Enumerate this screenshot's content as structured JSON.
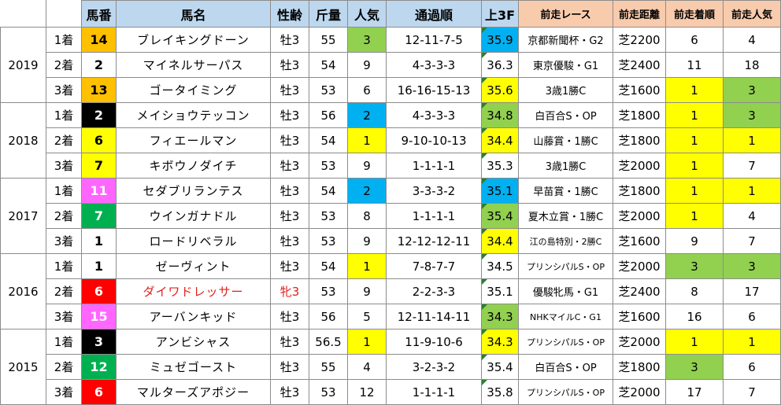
{
  "headers": [
    "",
    "",
    "馬番",
    "馬名",
    "性齢",
    "斤量",
    "人気",
    "通過順",
    "上3F",
    "前走レース",
    "前走距離",
    "前走着順",
    "前走人気"
  ],
  "colors": {
    "header_blue": "#bdd7ee",
    "header_orange": "#f8cbad",
    "green": "#92d050",
    "yellow": "#ffff00",
    "blue": "#00b0f0",
    "orange": "#ffc000",
    "pink": "#ff66ff",
    "red": "#ff0000",
    "black": "#000000",
    "white": "#ffffff",
    "dark_green": "#00b050"
  },
  "years": [
    {
      "year": "2019",
      "rows": [
        {
          "rank": "1着",
          "num": "14",
          "num_bg": "orange",
          "num_fg": "black",
          "name": "ブレイキングドーン",
          "sex": "牡3",
          "weight": "55",
          "pop": "3",
          "pop_bg": "green",
          "pass": "12-11-7-5",
          "f3": "35.9",
          "f3_bg": "blue",
          "race": "京都新聞杯・G2",
          "dist": "芝2200",
          "prank": "6",
          "prank_bg": "white",
          "ppop": "4",
          "ppop_bg": "white"
        },
        {
          "rank": "2着",
          "num": "2",
          "num_bg": "white",
          "num_fg": "black",
          "name": "マイネルサーパス",
          "sex": "牡3",
          "weight": "54",
          "pop": "9",
          "pop_bg": "white",
          "pass": "4-3-3-3",
          "f3": "36.3",
          "f3_bg": "white",
          "race": "東京優駿・G1",
          "dist": "芝2400",
          "prank": "11",
          "prank_bg": "white",
          "ppop": "18",
          "ppop_bg": "white"
        },
        {
          "rank": "3着",
          "num": "13",
          "num_bg": "orange",
          "num_fg": "black",
          "name": "ゴータイミング",
          "sex": "牡3",
          "weight": "53",
          "pop": "6",
          "pop_bg": "white",
          "pass": "16-16-15-13",
          "f3": "35.6",
          "f3_bg": "yellow",
          "race": "3歳1勝C",
          "dist": "芝1600",
          "prank": "1",
          "prank_bg": "yellow",
          "ppop": "3",
          "ppop_bg": "green"
        }
      ]
    },
    {
      "year": "2018",
      "rows": [
        {
          "rank": "1着",
          "num": "2",
          "num_bg": "black",
          "num_fg": "white",
          "name": "メイショウテッコン",
          "sex": "牡3",
          "weight": "56",
          "pop": "2",
          "pop_bg": "blue",
          "pass": "4-3-3-3",
          "f3": "34.8",
          "f3_bg": "green",
          "race": "白百合S・OP",
          "dist": "芝1800",
          "prank": "1",
          "prank_bg": "yellow",
          "ppop": "3",
          "ppop_bg": "green"
        },
        {
          "rank": "2着",
          "num": "6",
          "num_bg": "yellow",
          "num_fg": "black",
          "name": "フィエールマン",
          "sex": "牡3",
          "weight": "54",
          "pop": "1",
          "pop_bg": "yellow",
          "pass": "9-10-10-13",
          "f3": "34.4",
          "f3_bg": "yellow",
          "race": "山藤賞・1勝C",
          "dist": "芝1800",
          "prank": "1",
          "prank_bg": "yellow",
          "ppop": "1",
          "ppop_bg": "yellow"
        },
        {
          "rank": "3着",
          "num": "7",
          "num_bg": "yellow",
          "num_fg": "black",
          "name": "キボウノダイチ",
          "sex": "牡3",
          "weight": "53",
          "pop": "9",
          "pop_bg": "white",
          "pass": "1-1-1-1",
          "f3": "35.3",
          "f3_bg": "white",
          "race": "3歳1勝C",
          "dist": "芝2000",
          "prank": "1",
          "prank_bg": "yellow",
          "ppop": "7",
          "ppop_bg": "white"
        }
      ]
    },
    {
      "year": "2017",
      "rows": [
        {
          "rank": "1着",
          "num": "11",
          "num_bg": "pink",
          "num_fg": "white",
          "name": "セダブリランテス",
          "sex": "牡3",
          "weight": "54",
          "pop": "2",
          "pop_bg": "blue",
          "pass": "3-3-3-2",
          "f3": "35.1",
          "f3_bg": "blue",
          "race": "早苗賞・1勝C",
          "dist": "芝1800",
          "prank": "1",
          "prank_bg": "yellow",
          "ppop": "1",
          "ppop_bg": "yellow"
        },
        {
          "rank": "2着",
          "num": "7",
          "num_bg": "dark_green",
          "num_fg": "white",
          "name": "ウインガナドル",
          "sex": "牡3",
          "weight": "53",
          "pop": "8",
          "pop_bg": "white",
          "pass": "1-1-1-1",
          "f3": "35.4",
          "f3_bg": "green",
          "race": "夏木立賞・1勝C",
          "dist": "芝2000",
          "prank": "1",
          "prank_bg": "yellow",
          "ppop": "4",
          "ppop_bg": "white"
        },
        {
          "rank": "3着",
          "num": "1",
          "num_bg": "white",
          "num_fg": "black",
          "name": "ロードリベラル",
          "sex": "牡3",
          "weight": "53",
          "pop": "9",
          "pop_bg": "white",
          "pass": "12-12-12-11",
          "f3": "34.4",
          "f3_bg": "yellow",
          "race": "江の島特別・2勝C",
          "dist": "芝1600",
          "prank": "9",
          "prank_bg": "white",
          "ppop": "7",
          "ppop_bg": "white"
        }
      ]
    },
    {
      "year": "2016",
      "rows": [
        {
          "rank": "1着",
          "num": "1",
          "num_bg": "white",
          "num_fg": "black",
          "name": "ゼーヴィント",
          "sex": "牡3",
          "weight": "54",
          "pop": "1",
          "pop_bg": "yellow",
          "pass": "7-8-7-7",
          "f3": "34.5",
          "f3_bg": "white",
          "race": "プリンシパルS・OP",
          "dist": "芝2000",
          "prank": "3",
          "prank_bg": "green",
          "ppop": "3",
          "ppop_bg": "green"
        },
        {
          "rank": "2着",
          "num": "6",
          "num_bg": "red",
          "num_fg": "white",
          "name": "ダイワドレッサー",
          "sex": "牝3",
          "weight": "53",
          "pop": "9",
          "pop_bg": "white",
          "pass": "2-2-3-3",
          "f3": "35.1",
          "f3_bg": "white",
          "race": "優駿牝馬・G1",
          "dist": "芝2400",
          "prank": "8",
          "prank_bg": "white",
          "ppop": "17",
          "ppop_bg": "white",
          "red": true
        },
        {
          "rank": "3着",
          "num": "15",
          "num_bg": "pink",
          "num_fg": "white",
          "name": "アーバンキッド",
          "sex": "牡3",
          "weight": "56",
          "pop": "5",
          "pop_bg": "white",
          "pass": "12-11-14-11",
          "f3": "34.3",
          "f3_bg": "green",
          "race": "NHKマイルC・G1",
          "dist": "芝1600",
          "prank": "16",
          "prank_bg": "white",
          "ppop": "6",
          "ppop_bg": "white"
        }
      ]
    },
    {
      "year": "2015",
      "rows": [
        {
          "rank": "1着",
          "num": "3",
          "num_bg": "black",
          "num_fg": "white",
          "name": "アンビシャス",
          "sex": "牡3",
          "weight": "56.5",
          "pop": "1",
          "pop_bg": "yellow",
          "pass": "11-9-10-6",
          "f3": "34.3",
          "f3_bg": "yellow",
          "race": "プリンシパルS・OP",
          "dist": "芝2000",
          "prank": "1",
          "prank_bg": "yellow",
          "ppop": "1",
          "ppop_bg": "yellow"
        },
        {
          "rank": "2着",
          "num": "12",
          "num_bg": "dark_green",
          "num_fg": "white",
          "name": "ミュゼゴースト",
          "sex": "牡3",
          "weight": "55",
          "pop": "4",
          "pop_bg": "white",
          "pass": "3-2-3-2",
          "f3": "35.4",
          "f3_bg": "white",
          "race": "白百合S・OP",
          "dist": "芝1800",
          "prank": "3",
          "prank_bg": "green",
          "ppop": "6",
          "ppop_bg": "white"
        },
        {
          "rank": "3着",
          "num": "6",
          "num_bg": "red",
          "num_fg": "white",
          "name": "マルターズアポジー",
          "sex": "牡3",
          "weight": "53",
          "pop": "12",
          "pop_bg": "white",
          "pass": "1-1-1-1",
          "f3": "35.8",
          "f3_bg": "white",
          "race": "プリンシパルS・OP",
          "dist": "芝2000",
          "prank": "17",
          "prank_bg": "white",
          "ppop": "7",
          "ppop_bg": "white"
        }
      ]
    }
  ]
}
